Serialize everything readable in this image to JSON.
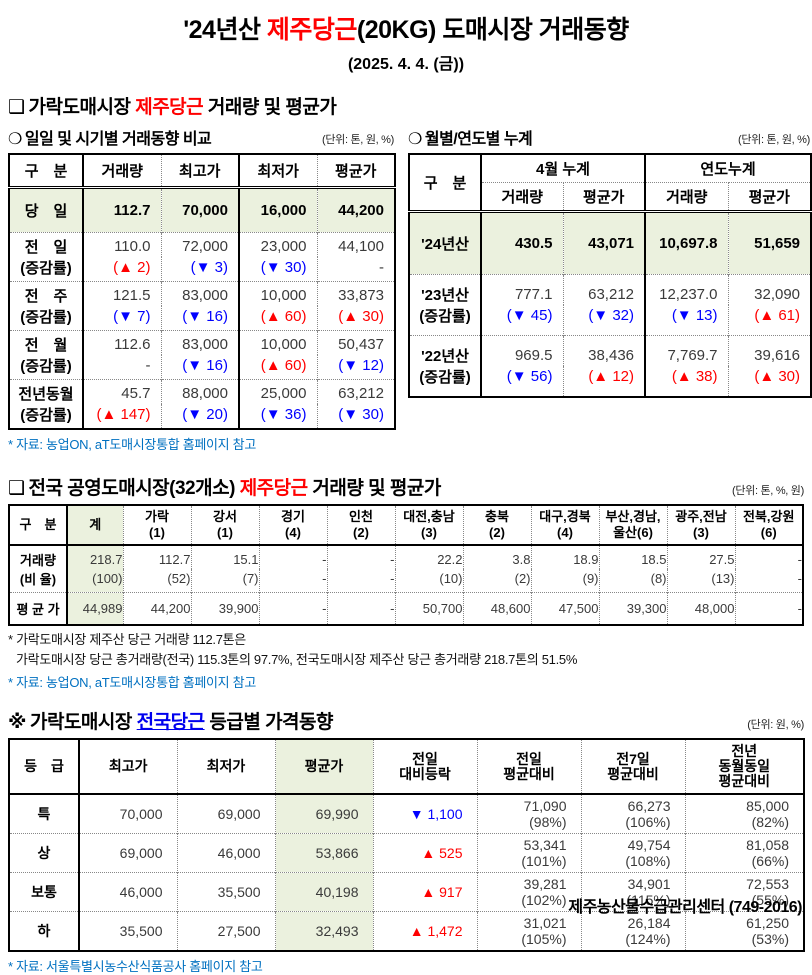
{
  "title": {
    "pre": "'24년산 ",
    "red": "제주당근",
    "post": "(20KG) 도매시장 거래동향"
  },
  "date_line": "(2025. 4. 4. (금))",
  "colors": {
    "up": "#ff0000",
    "down": "#0000ff",
    "source_blue": "#0070c0",
    "link_blue": "#0000ee",
    "highlight_green": "#ebf1de",
    "title_red": "#ff0000"
  },
  "section1": {
    "bullet": "❑",
    "heading": {
      "pre": "가락도매시장 ",
      "red": "제주당근",
      "post": " 거래량 및 평균가"
    },
    "daily": {
      "bullet": "❍",
      "subtitle": "일일 및 시기별 거래동향 비교",
      "unit": "(단위: 톤, 원, %)",
      "headers": [
        "구　분",
        "거래량",
        "최고가",
        "최저가",
        "평균가"
      ],
      "change_label": "(증감률)",
      "highlight_row": {
        "label": "당　일",
        "values": [
          "112.7",
          "70,000",
          "16,000",
          "44,200"
        ]
      },
      "rows": [
        {
          "label": "전　일",
          "values": [
            "110.0",
            "72,000",
            "23,000",
            "44,100"
          ],
          "changes": [
            "(▲ 2)",
            "(▼ 3)",
            "(▼ 30)",
            "-"
          ]
        },
        {
          "label": "전　주",
          "values": [
            "121.5",
            "83,000",
            "10,000",
            "33,873"
          ],
          "changes": [
            "(▼ 7)",
            "(▼ 16)",
            "(▲ 60)",
            "(▲ 30)"
          ]
        },
        {
          "label": "전　월",
          "values": [
            "112.6",
            "83,000",
            "10,000",
            "50,437"
          ],
          "changes": [
            "-",
            "(▼ 16)",
            "(▲ 60)",
            "(▼ 12)"
          ]
        },
        {
          "label": "전년동월",
          "values": [
            "45.7",
            "88,000",
            "25,000",
            "63,212"
          ],
          "changes": [
            "(▲ 147)",
            "(▼ 20)",
            "(▼ 36)",
            "(▼ 30)"
          ]
        }
      ],
      "source": "* 자료: 농업ON, aT도매시장통합 홈페이지 참고"
    },
    "cumulative": {
      "bullet": "❍",
      "subtitle": "월별/연도별 누계",
      "unit": "(단위: 톤, 원, %)",
      "corner": "구　분",
      "group_headers": [
        "4월 누계",
        "연도누계"
      ],
      "sub_headers": [
        "거래량",
        "평균가",
        "거래량",
        "평균가"
      ],
      "change_label": "(증감률)",
      "highlight_row": {
        "label": "'24년산",
        "values": [
          "430.5",
          "43,071",
          "10,697.8",
          "51,659"
        ]
      },
      "rows": [
        {
          "label": "'23년산",
          "values": [
            "777.1",
            "63,212",
            "12,237.0",
            "32,090"
          ],
          "changes": [
            "(▼ 45)",
            "(▼ 32)",
            "(▼ 13)",
            "(▲ 61)"
          ]
        },
        {
          "label": "'22년산",
          "values": [
            "969.5",
            "38,436",
            "7,769.7",
            "39,616"
          ],
          "changes": [
            "(▼ 56)",
            "(▲ 12)",
            "(▲ 38)",
            "(▲ 30)"
          ]
        }
      ]
    }
  },
  "section2": {
    "bullet": "❑",
    "heading": {
      "pre": "전국 공영도매시장(32개소) ",
      "red": "제주당근",
      "post": " 거래량 및 평균가"
    },
    "unit": "(단위: 톤, %, 원)",
    "corner": "구　분",
    "columns": [
      {
        "line1": "계",
        "highlight": true
      },
      {
        "line1": "가락",
        "line2": "(1)"
      },
      {
        "line1": "강서",
        "line2": "(1)"
      },
      {
        "line1": "경기",
        "line2": "(4)"
      },
      {
        "line1": "인천",
        "line2": "(2)"
      },
      {
        "line1": "대전,충남",
        "line2": "(3)"
      },
      {
        "line1": "충북",
        "line2": "(2)"
      },
      {
        "line1": "대구,경북",
        "line2": "(4)"
      },
      {
        "line1": "부산,경남,",
        "line2": "울산(6)"
      },
      {
        "line1": "광주,전남",
        "line2": "(3)"
      },
      {
        "line1": "전북,강원",
        "line2": "(6)"
      }
    ],
    "volume": {
      "label": "거래량",
      "values": [
        "218.7",
        "112.7",
        "15.1",
        "-",
        "-",
        "22.2",
        "3.8",
        "18.9",
        "18.5",
        "27.5",
        "-"
      ]
    },
    "ratio": {
      "label": "(비 율)",
      "values": [
        "(100)",
        "(52)",
        "(7)",
        "-",
        "-",
        "(10)",
        "(2)",
        "(9)",
        "(8)",
        "(13)",
        "-"
      ]
    },
    "avg": {
      "label": "평 균 가",
      "values": [
        "44,989",
        "44,200",
        "39,900",
        "-",
        "-",
        "50,700",
        "48,600",
        "47,500",
        "39,300",
        "48,000",
        "-"
      ]
    },
    "note1": "* 가락도매시장 제주산 당근 거래량 112.7톤은",
    "note2": "가락도매시장 당근 총거래량(전국) 115.3톤의 97.7%, 전국도매시장 제주산 당근 총거래량 218.7톤의 51.5%",
    "source": "* 자료: 농업ON, aT도매시장통합 홈페이지 참고"
  },
  "section3": {
    "bullet": "※",
    "heading": {
      "pre": "가락도매시장 ",
      "link": "전국당근",
      "post": " 등급별 가격동향"
    },
    "unit": "(단위: 원, %)",
    "headers": [
      "등　급",
      "최고가",
      "최저가",
      "평균가",
      "전일\n대비등락",
      "전일\n평균대비",
      "전7일\n평균대비",
      "전년\n동월동일\n평균대비"
    ],
    "rows": [
      {
        "grade": "특",
        "high": "70,000",
        "low": "69,000",
        "avg": "69,990",
        "change": "▼ 1,100",
        "day": [
          "71,090",
          "(98%)"
        ],
        "week": [
          "66,273",
          "(106%)"
        ],
        "year": [
          "85,000",
          "(82%)"
        ]
      },
      {
        "grade": "상",
        "high": "69,000",
        "low": "46,000",
        "avg": "53,866",
        "change": "▲ 525",
        "day": [
          "53,341",
          "(101%)"
        ],
        "week": [
          "49,754",
          "(108%)"
        ],
        "year": [
          "81,058",
          "(66%)"
        ]
      },
      {
        "grade": "보통",
        "high": "46,000",
        "low": "35,500",
        "avg": "40,198",
        "change": "▲ 917",
        "day": [
          "39,281",
          "(102%)"
        ],
        "week": [
          "34,901",
          "(115%)"
        ],
        "year": [
          "72,553",
          "(55%)"
        ]
      },
      {
        "grade": "하",
        "high": "35,500",
        "low": "27,500",
        "avg": "32,493",
        "change": "▲ 1,472",
        "day": [
          "31,021",
          "(105%)"
        ],
        "week": [
          "26,184",
          "(124%)"
        ],
        "year": [
          "61,250",
          "(53%)"
        ]
      }
    ],
    "source": "* 자료: 서울특별시농수산식품공사 홈페이지 참고"
  },
  "footer": "제주농산물수급관리센터 (749-2016)"
}
